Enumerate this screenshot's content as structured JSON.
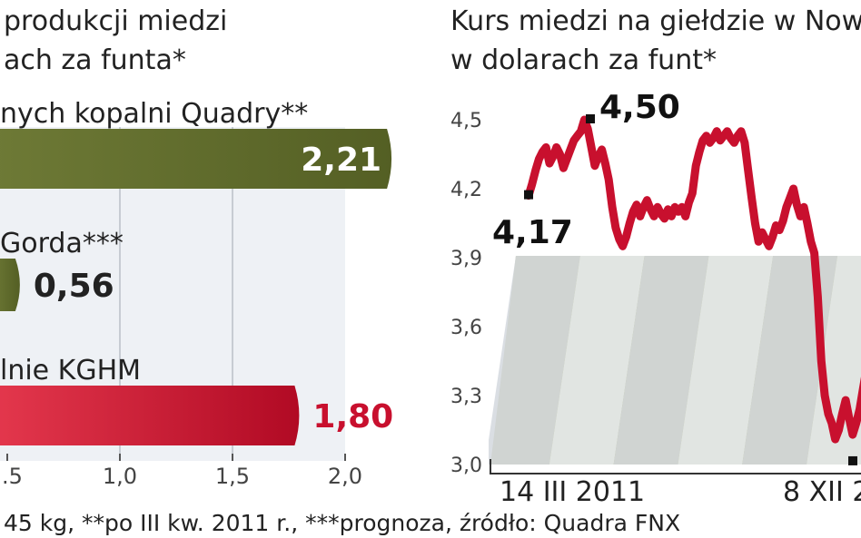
{
  "colors": {
    "olive": "#5f6b2c",
    "red": "#c8102e",
    "text": "#222222",
    "axis": "#444444",
    "stripe_light": "#eef1f5",
    "stripe_dark": "#cfd6de",
    "backdrop_olive": "#b9bd90"
  },
  "left_chart": {
    "title_line1": "produkcji miedzi",
    "title_line2": "ach za funta*",
    "footnote": "45 kg, **po III kw. 2011 r., ***prognoza, źródło: Quadra FNX"
  },
  "right_chart": {
    "title_line1": "Kurs miedzi na giełdzie w Now",
    "title_line2": "w dolarach za funt*",
    "label_start": "4,17",
    "label_peak": "4,50"
  },
  "chart_data": [
    {
      "type": "bar",
      "title": "produkcji miedzi ach za funta*",
      "categories": [
        "nych kopalni Quadry**",
        "Gorda***",
        "lnie KGHM"
      ],
      "values": [
        2.21,
        0.56,
        1.8
      ],
      "value_labels": [
        "2,21",
        "0,56",
        "1,80"
      ],
      "series_colors": [
        "#5f6b2c",
        "#5f6b2c",
        "#c8102e"
      ],
      "x_ticks": [
        ".5",
        "1,0",
        "1,5",
        "2,0"
      ],
      "xlim": [
        0.5,
        2.0
      ],
      "grid": true
    },
    {
      "type": "line",
      "title": "Kurs miedzi na giełdzie w Now w dolarach za funt*",
      "x_labels": [
        "14 III 2011",
        "8 XII 20"
      ],
      "y_ticks": [
        "4,5",
        "4,2",
        "3,9",
        "3,6",
        "3,3",
        "3,0"
      ],
      "ylim": [
        3.0,
        4.5
      ],
      "annotations": [
        {
          "label": "4,17",
          "value": 4.17
        },
        {
          "label": "4,50",
          "value": 4.5
        }
      ],
      "series": [
        {
          "color": "#c8102e",
          "values": [
            4.17,
            4.22,
            4.28,
            4.33,
            4.36,
            4.38,
            4.31,
            4.34,
            4.38,
            4.35,
            4.29,
            4.33,
            4.37,
            4.41,
            4.43,
            4.45,
            4.5,
            4.46,
            4.38,
            4.3,
            4.34,
            4.37,
            4.31,
            4.24,
            4.12,
            4.03,
            3.98,
            3.95,
            3.99,
            4.05,
            4.1,
            4.13,
            4.08,
            4.12,
            4.15,
            4.11,
            4.08,
            4.12,
            4.09,
            4.07,
            4.11,
            4.08,
            4.12,
            4.1,
            4.12,
            4.08,
            4.14,
            4.18,
            4.3,
            4.36,
            4.41,
            4.43,
            4.4,
            4.42,
            4.45,
            4.41,
            4.43,
            4.45,
            4.42,
            4.4,
            4.43,
            4.45,
            4.4,
            4.28,
            4.16,
            4.05,
            3.97,
            4.01,
            3.98,
            3.95,
            3.99,
            4.04,
            4.02,
            4.06,
            4.12,
            4.16,
            4.2,
            4.13,
            4.08,
            4.12,
            4.05,
            3.97,
            3.92,
            3.73,
            3.45,
            3.3,
            3.22,
            3.18,
            3.11,
            3.15,
            3.22,
            3.28,
            3.2,
            3.13,
            3.18,
            3.24,
            3.33,
            3.42,
            3.48
          ]
        }
      ]
    }
  ]
}
